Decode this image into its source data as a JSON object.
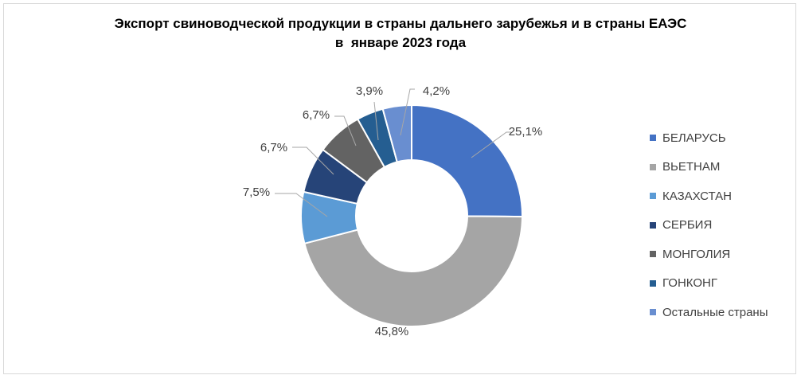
{
  "chart_data": {
    "type": "pie",
    "donut": true,
    "title_lines": [
      "Экспорт свиноводческой продукции в страны дальнего зарубежья и в страны ЕАЭС",
      "в  январе 2023 года"
    ],
    "legend_position": "right",
    "slices": [
      {
        "name": "БЕЛАРУСЬ",
        "value": 25.1,
        "label": "25,1%",
        "color": "#4472c4"
      },
      {
        "name": "ВЬЕТНАМ",
        "value": 45.8,
        "label": "45,8%",
        "color": "#a5a5a5"
      },
      {
        "name": "КАЗАХСТАН",
        "value": 7.5,
        "label": "7,5%",
        "color": "#5b9bd5"
      },
      {
        "name": "СЕРБИЯ",
        "value": 6.7,
        "label": "6,7%",
        "color": "#264478"
      },
      {
        "name": "МОНГОЛИЯ",
        "value": 6.7,
        "label": "6,7%",
        "color": "#636363"
      },
      {
        "name": "ГОНКОНГ",
        "value": 3.9,
        "label": "3,9%",
        "color": "#255e91"
      },
      {
        "name": "Остальные страны",
        "value": 4.2,
        "label": "4,2%",
        "color": "#698ed0"
      }
    ]
  }
}
